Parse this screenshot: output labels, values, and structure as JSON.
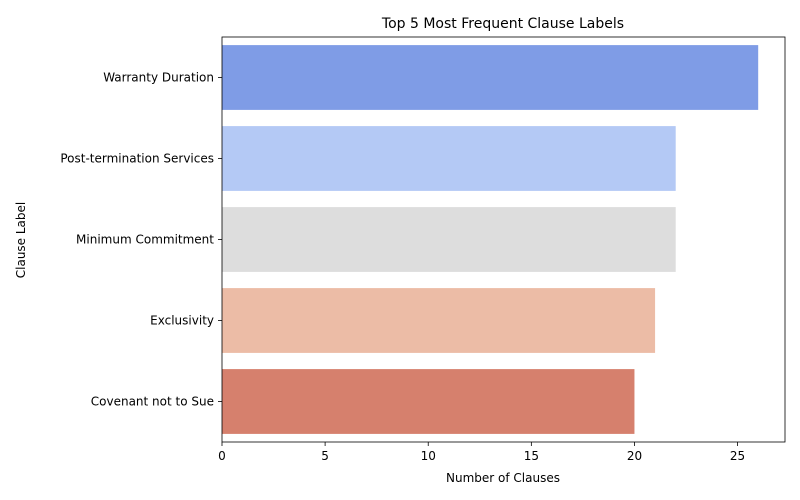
{
  "chart_data": {
    "type": "bar",
    "orientation": "horizontal",
    "title": "Top 5 Most Frequent Clause Labels",
    "xlabel": "Number of Clauses",
    "ylabel": "Clause Label",
    "categories": [
      "Warranty Duration",
      "Post-termination Services",
      "Minimum Commitment",
      "Exclusivity",
      "Covenant not to Sue"
    ],
    "values": [
      26,
      22,
      22,
      21,
      20
    ],
    "colors": [
      "#7f9ce6",
      "#b4c9f5",
      "#dddddd",
      "#ecbca6",
      "#d6806d"
    ],
    "xticks": [
      0,
      5,
      10,
      15,
      20,
      25
    ],
    "xlim": [
      0,
      27.3
    ],
    "grid": false,
    "legend": "none"
  }
}
